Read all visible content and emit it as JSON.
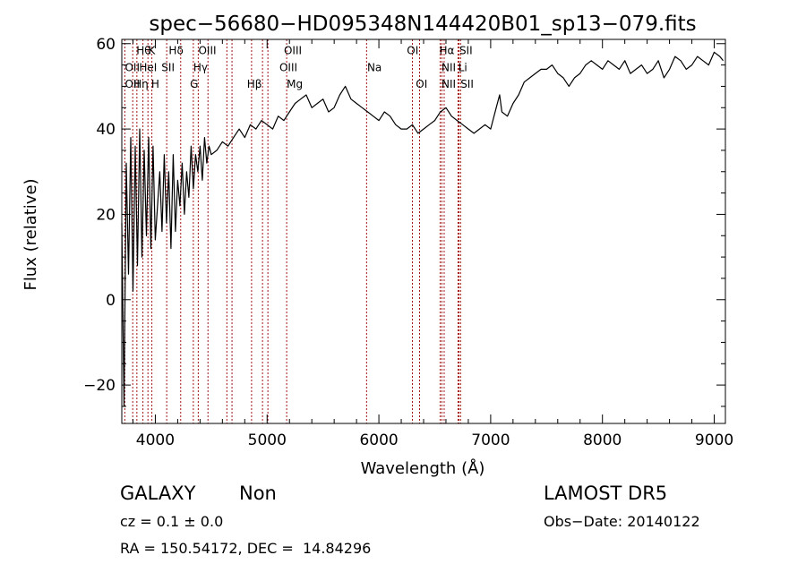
{
  "chart_data": {
    "type": "line",
    "title": "spec−56680−HD095348N144420B01_sp13−079.fits",
    "xlabel": "Wavelength (Å)",
    "ylabel": "Flux (relative)",
    "xlim": [
      3700,
      9100
    ],
    "ylim": [
      -29,
      61
    ],
    "xticks": [
      4000,
      5000,
      6000,
      7000,
      8000,
      9000
    ],
    "xtick_labels": [
      "4000",
      "5000",
      "6000",
      "7000",
      "8000",
      "9000"
    ],
    "yticks": [
      -20,
      0,
      20,
      40,
      60
    ],
    "ytick_labels": [
      "−20",
      "0",
      "20",
      "40",
      "60"
    ],
    "grid": false,
    "series": [
      {
        "color": "#000000",
        "x": [
          3700,
          3720,
          3740,
          3760,
          3780,
          3800,
          3820,
          3840,
          3860,
          3880,
          3900,
          3920,
          3940,
          3960,
          3980,
          4000,
          4020,
          4040,
          4060,
          4080,
          4100,
          4120,
          4140,
          4160,
          4180,
          4200,
          4220,
          4240,
          4260,
          4280,
          4300,
          4320,
          4340,
          4360,
          4380,
          4400,
          4420,
          4440,
          4460,
          4480,
          4500,
          4550,
          4600,
          4650,
          4700,
          4750,
          4800,
          4850,
          4900,
          4950,
          5000,
          5050,
          5100,
          5150,
          5200,
          5250,
          5300,
          5350,
          5400,
          5450,
          5500,
          5550,
          5600,
          5650,
          5700,
          5750,
          5800,
          5850,
          5900,
          5950,
          6000,
          6050,
          6100,
          6150,
          6200,
          6250,
          6300,
          6350,
          6400,
          6450,
          6500,
          6550,
          6600,
          6650,
          6700,
          6750,
          6800,
          6850,
          6900,
          6950,
          7000,
          7050,
          7080,
          7100,
          7150,
          7200,
          7250,
          7300,
          7350,
          7400,
          7450,
          7500,
          7550,
          7600,
          7650,
          7700,
          7750,
          7800,
          7850,
          7900,
          7950,
          8000,
          8050,
          8100,
          8150,
          8200,
          8250,
          8300,
          8350,
          8400,
          8450,
          8500,
          8550,
          8600,
          8650,
          8700,
          8750,
          8800,
          8850,
          8900,
          8950,
          9000,
          9050,
          9080
        ],
        "y": [
          18,
          -25,
          32,
          6,
          38,
          2,
          36,
          8,
          40,
          10,
          35,
          15,
          38,
          12,
          36,
          14,
          22,
          30,
          16,
          34,
          18,
          30,
          12,
          34,
          16,
          28,
          22,
          32,
          20,
          30,
          24,
          36,
          26,
          34,
          30,
          36,
          28,
          38,
          32,
          36,
          34,
          35,
          37,
          36,
          38,
          40,
          38,
          41,
          40,
          42,
          41,
          40,
          43,
          42,
          44,
          46,
          47,
          48,
          45,
          46,
          47,
          44,
          45,
          48,
          50,
          47,
          46,
          45,
          44,
          43,
          42,
          44,
          43,
          41,
          40,
          40,
          41,
          39,
          40,
          41,
          42,
          44,
          45,
          43,
          42,
          41,
          40,
          39,
          40,
          41,
          40,
          45,
          48,
          44,
          43,
          46,
          48,
          51,
          52,
          53,
          54,
          54,
          55,
          53,
          52,
          50,
          52,
          53,
          55,
          56,
          55,
          54,
          56,
          55,
          54,
          56,
          53,
          54,
          55,
          53,
          54,
          56,
          52,
          54,
          57,
          56,
          54,
          55,
          57,
          56,
          55,
          58,
          57,
          56
        ]
      }
    ],
    "lines": {
      "color": "#a31515",
      "x": [
        3727,
        3798,
        3835,
        3889,
        3934,
        3969,
        4102,
        4227,
        4340,
        4384,
        4471,
        4640,
        4686,
        4861,
        4959,
        5007,
        5175,
        5890,
        6300,
        6364,
        6548,
        6563,
        6584,
        6708,
        6716,
        6731
      ]
    },
    "annotations": [
      {
        "text": "Hθ",
        "x": 3830,
        "y": 57.5
      },
      {
        "text": "K",
        "x": 3936,
        "y": 57.5
      },
      {
        "text": "Hδ",
        "x": 4120,
        "y": 57.5
      },
      {
        "text": "OIII",
        "x": 4385,
        "y": 57.5
      },
      {
        "text": "OIII",
        "x": 5150,
        "y": 57.5
      },
      {
        "text": "OI",
        "x": 6250,
        "y": 57.5
      },
      {
        "text": "Hα",
        "x": 6540,
        "y": 57.5
      },
      {
        "text": "SII",
        "x": 6720,
        "y": 57.5
      },
      {
        "text": "OII",
        "x": 3728,
        "y": 53.6
      },
      {
        "text": "HeI",
        "x": 3855,
        "y": 53.6
      },
      {
        "text": "SII",
        "x": 4055,
        "y": 53.6
      },
      {
        "text": "Hγ",
        "x": 4340,
        "y": 53.6
      },
      {
        "text": "OIII",
        "x": 5110,
        "y": 53.6
      },
      {
        "text": "Na",
        "x": 5895,
        "y": 53.6
      },
      {
        "text": "NII",
        "x": 6560,
        "y": 53.6
      },
      {
        "text": "Li",
        "x": 6710,
        "y": 53.6
      },
      {
        "text": "OII",
        "x": 3728,
        "y": 49.7
      },
      {
        "text": "Hη",
        "x": 3805,
        "y": 49.7
      },
      {
        "text": "H",
        "x": 3963,
        "y": 49.7
      },
      {
        "text": "G",
        "x": 4310,
        "y": 49.7
      },
      {
        "text": "Hβ",
        "x": 4820,
        "y": 49.7
      },
      {
        "text": "Mg",
        "x": 5175,
        "y": 49.7
      },
      {
        "text": "OI",
        "x": 6330,
        "y": 49.7
      },
      {
        "text": "NII",
        "x": 6560,
        "y": 49.7
      },
      {
        "text": "SII",
        "x": 6730,
        "y": 49.7
      }
    ]
  },
  "info": {
    "class": "GALAXY",
    "subclass": "Non",
    "cz": "cz = 0.1 ± 0.0",
    "radec": "RA = 150.54172, DEC =  14.84296",
    "survey": "LAMOST DR5",
    "obsdate": "Obs−Date: 20140122"
  }
}
